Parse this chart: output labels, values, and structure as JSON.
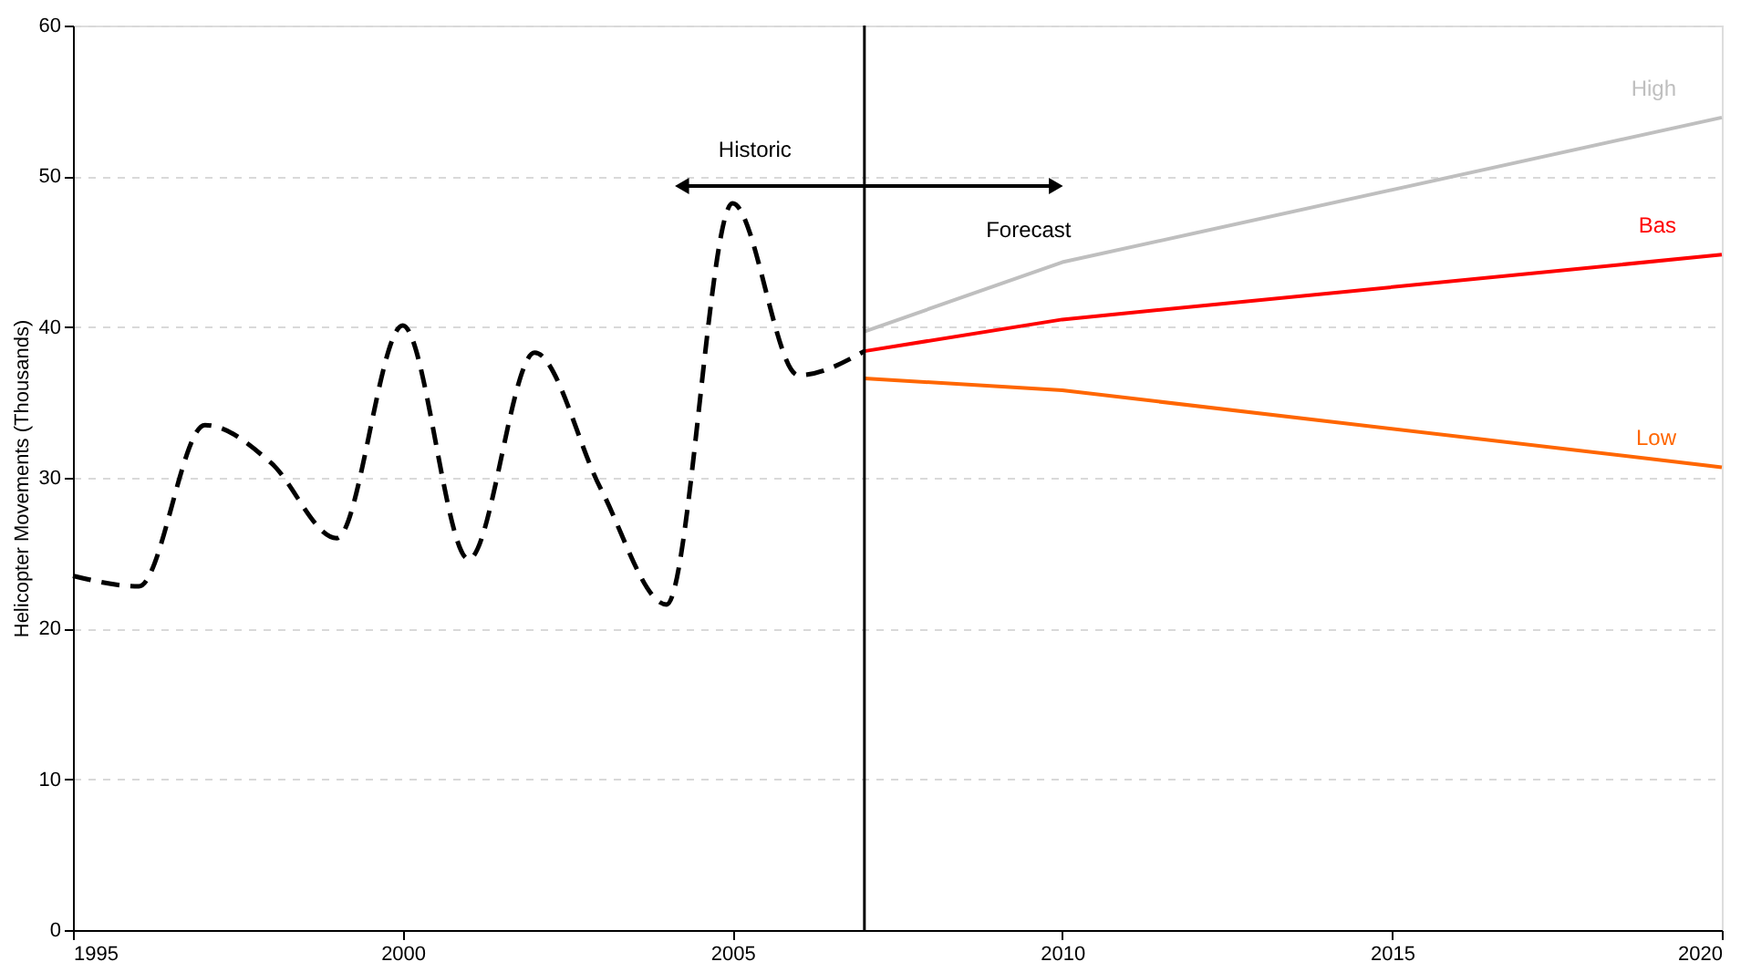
{
  "chart_data": {
    "type": "line",
    "ylabel": "Helicopter Movements (Thousands)",
    "xlim": [
      1995,
      2020
    ],
    "xticks": [
      1995,
      2000,
      2005,
      2010,
      2015,
      2020
    ],
    "ylim": [
      0,
      60
    ],
    "yticks": [
      0,
      10,
      20,
      30,
      40,
      50,
      60
    ],
    "grid": "y",
    "legend": false,
    "marker": "none",
    "series": [
      {
        "color": "#000000",
        "line_style": "dashed",
        "x": [
          1995,
          1996,
          1997,
          1998,
          1999,
          2000,
          2001,
          2002,
          2003,
          2004,
          2005,
          2006,
          2007
        ],
        "values": [
          23.5,
          22.8,
          33.5,
          31,
          26,
          40.1,
          24.6,
          38.3,
          29.3,
          21.6,
          48.2,
          36.8,
          38.4
        ]
      },
      {
        "name": "High",
        "color": "#bfbfbf",
        "line_style": "solid",
        "x": [
          2007,
          2010,
          2020
        ],
        "values": [
          39.7,
          44.3,
          53.9
        ]
      },
      {
        "name": "Bas",
        "color": "#ff0000",
        "line_style": "solid",
        "x": [
          2007,
          2010,
          2020
        ],
        "values": [
          38.4,
          40.5,
          44.8
        ]
      },
      {
        "name": "Low",
        "color": "#ff6600",
        "line_style": "solid",
        "x": [
          2007,
          2010,
          2020
        ],
        "values": [
          36.6,
          35.8,
          30.7
        ]
      }
    ],
    "ref_lines": [
      {
        "axis": "x",
        "value": 2007,
        "color": "#000000"
      }
    ],
    "annotations": [
      "Historic",
      "Forecast"
    ]
  }
}
